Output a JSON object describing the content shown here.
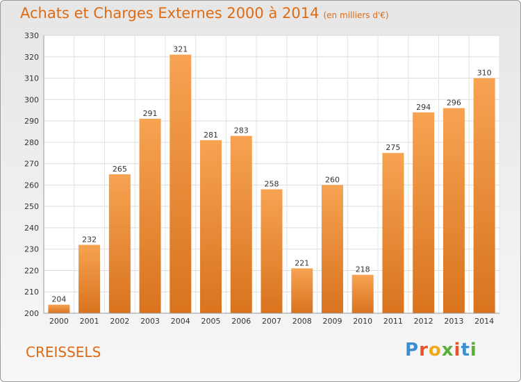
{
  "header": {
    "title": "Achats et Charges Externes 2000 à 2014",
    "unit": "(en milliers d'€)"
  },
  "footer": {
    "commune": "CREISSELS",
    "logo_letters": [
      "P",
      "r",
      "o",
      "x",
      "i",
      "t",
      "i"
    ]
  },
  "colors": {
    "title": "#e06a12",
    "bar_top": "#f6a352",
    "bar_bottom": "#d9731e",
    "logo": [
      "#3b8fd0",
      "#e8532a",
      "#f2a81d",
      "#5cae3a",
      "#e8532a",
      "#3b8fd0",
      "#5cae3a"
    ]
  },
  "chart_data": {
    "type": "bar",
    "title": "Achats et Charges Externes 2000 à 2014",
    "subtitle": "(en milliers d'€)",
    "categories": [
      "2000",
      "2001",
      "2002",
      "2003",
      "2004",
      "2005",
      "2006",
      "2007",
      "2008",
      "2009",
      "2010",
      "2011",
      "2012",
      "2013",
      "2014"
    ],
    "values": [
      204,
      232,
      265,
      291,
      321,
      281,
      283,
      258,
      221,
      260,
      218,
      275,
      294,
      296,
      310
    ],
    "ylim": [
      200,
      330
    ],
    "yticks": [
      200,
      210,
      220,
      230,
      240,
      250,
      260,
      270,
      280,
      290,
      300,
      310,
      320,
      330
    ],
    "grid": true,
    "data_labels": true
  }
}
